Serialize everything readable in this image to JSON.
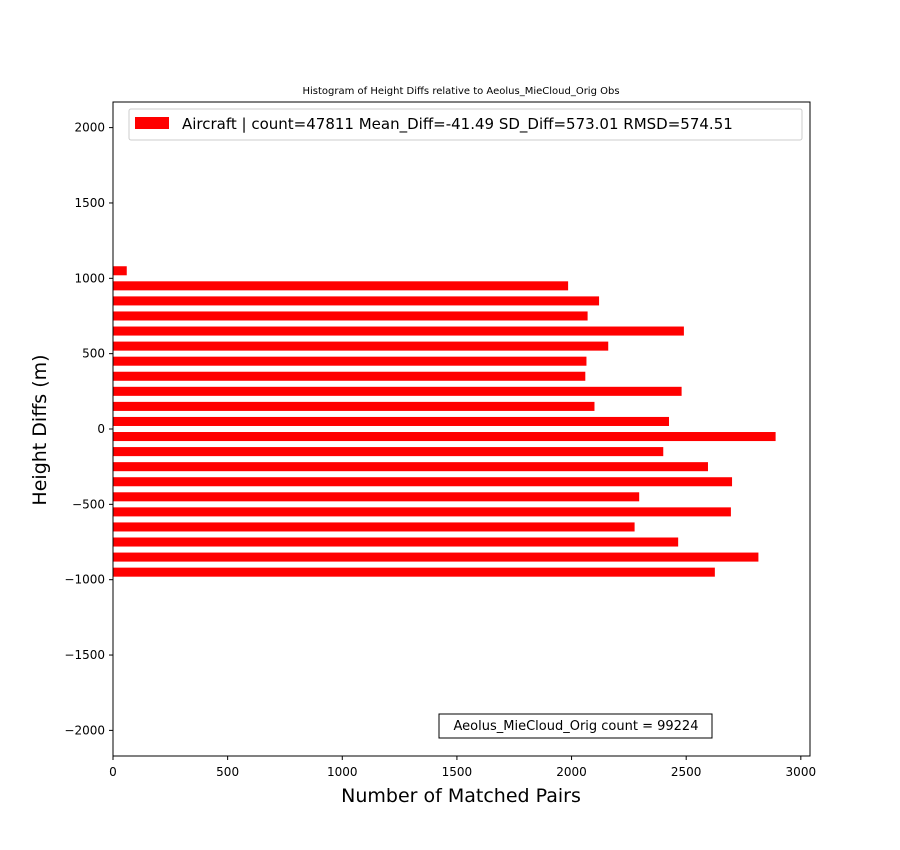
{
  "chart_data": {
    "type": "bar",
    "orientation": "horizontal",
    "title": "Histogram of Height Diffs relative to Aeolus_MieCloud_Orig Obs",
    "xlabel": "Number of Matched Pairs",
    "ylabel": "Height Diffs (m)",
    "xlim": [
      0,
      3040
    ],
    "ylim": [
      -2170,
      2170
    ],
    "x_ticks": [
      0,
      500,
      1000,
      1500,
      2000,
      2500,
      3000
    ],
    "y_ticks": [
      -2000,
      -1500,
      -1000,
      -500,
      0,
      500,
      1000,
      1500,
      2000
    ],
    "x_tick_labels": [
      "0",
      "500",
      "1000",
      "1500",
      "2000",
      "2500",
      "3000"
    ],
    "y_tick_labels": [
      "−2000",
      "−1500",
      "−1000",
      "−500",
      "0",
      "500",
      "1000",
      "1500",
      "2000"
    ],
    "bar_height": 60,
    "series": [
      {
        "name": "Aircraft | count=47811 Mean_Diff=-41.49 SD_Diff=573.01 RMSD=574.51",
        "color": "#ff0000",
        "y": [
          -950,
          -850,
          -750,
          -650,
          -550,
          -450,
          -350,
          -250,
          -150,
          -50,
          50,
          150,
          250,
          350,
          450,
          550,
          650,
          750,
          850,
          950,
          1050
        ],
        "values": [
          2625,
          2815,
          2465,
          2275,
          2695,
          2295,
          2700,
          2595,
          2400,
          2890,
          2425,
          2100,
          2480,
          2060,
          2065,
          2160,
          2490,
          2070,
          2120,
          1985,
          60
        ]
      }
    ],
    "legend_position": "top",
    "annotation": "Aeolus_MieCloud_Orig count = 99224",
    "grid": false
  }
}
